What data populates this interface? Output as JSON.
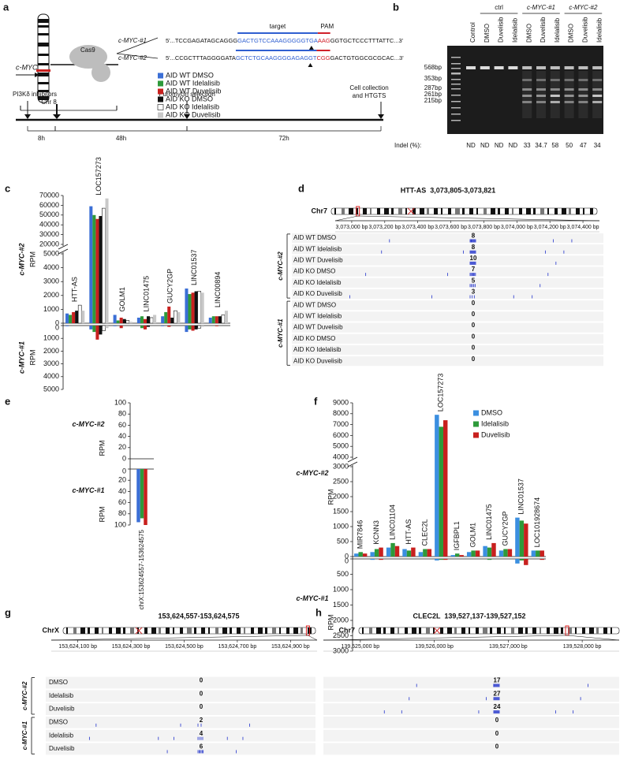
{
  "panel_a": {
    "letter": "a",
    "gene": "c-MYC",
    "chromosome": "Chr 8",
    "cas9": "Cas9",
    "guides": [
      {
        "name": "c-MYC-#1",
        "seq": [
          "5'...TCCGAGATAGCAGGG",
          "GACTGTCCAAAGGGGGTGA",
          "AAG",
          "GGTGCTCCCTTTATTC...3'"
        ]
      },
      {
        "name": "c-MYC-#2",
        "seq": [
          "5'...CCGCTTTAGGGGATA",
          "GCTCTGCAAGGGGAGAGGT",
          "CGG",
          "GACTGTGGCGCGCAC...3'"
        ]
      }
    ],
    "target": "target",
    "pam": "PAM",
    "timeline": {
      "events": [
        "PI3Kδ inhibitors",
        "Puromycin selection"
      ],
      "final_event": [
        "Cell collection",
        "and HTGTS"
      ],
      "durations": [
        "8h",
        "48h",
        "72h"
      ]
    }
  },
  "panel_b": {
    "letter": "b",
    "groups": [
      "ctrl",
      "c-MYC-#1",
      "c-MYC-#2"
    ],
    "lanes": [
      "Control",
      "DMSO",
      "Duvelisib",
      "Idelalisib",
      "DMSO",
      "Duvelisib",
      "Idelalisib",
      "DMSO",
      "Duvelisib",
      "Idelalisib"
    ],
    "sizes": [
      "568bp",
      "353bp",
      "287bp",
      "261bp",
      "215bp"
    ],
    "indel_label": "Indel (%):",
    "indel": [
      "ND",
      "ND",
      "ND",
      "ND",
      33,
      34.7,
      58,
      50,
      47,
      34
    ]
  },
  "panel_d": {
    "letter": "d",
    "title": "HTT-AS  3,073,805-3,073,821",
    "chromosome": "Chr7",
    "ruler": [
      "3,073,000 bp",
      "3,073,200 bp",
      "3,073,400 bp",
      "3,073,600 bp",
      "3,073,800 bp",
      "3,074,000 bp",
      "3,074,200 bp",
      "3,074,400 bp"
    ],
    "groups": [
      {
        "label": "c-MYC-#2",
        "rows": [
          {
            "label": "AID WT DMSO",
            "count": 8
          },
          {
            "label": "AID WT Idelalisib",
            "count": 8
          },
          {
            "label": "AID WT Duvelisib",
            "count": 10
          },
          {
            "label": "AID KO DMSO",
            "count": 7
          },
          {
            "label": "AID KO Idelalisib",
            "count": 5
          },
          {
            "label": "AID KO Duvelisib",
            "count": 3
          }
        ]
      },
      {
        "label": "c-MYC-#1",
        "rows": [
          {
            "label": "AID WT DMSO",
            "count": 0
          },
          {
            "label": "AID WT Idelalisib",
            "count": 0
          },
          {
            "label": "AID WT Duvelisib",
            "count": 0
          },
          {
            "label": "AID KO DMSO",
            "count": 0
          },
          {
            "label": "AID KO Idelalisib",
            "count": 0
          },
          {
            "label": "AID KO Duvelisib",
            "count": 0
          }
        ]
      }
    ]
  },
  "panel_g": {
    "letter": "g",
    "title": "153,624,557-153,624,575",
    "chromosome": "ChrX",
    "ruler": [
      "153,624,100 bp",
      "153,624,300 bp",
      "153,624,500 bp",
      "153,624,700 bp",
      "153,624,900 bp"
    ],
    "groups": [
      {
        "label": "c-MYC-#2",
        "rows": [
          {
            "label": "DMSO",
            "count": 0
          },
          {
            "label": "Idelalisib",
            "count": 0
          },
          {
            "label": "Duvelisib",
            "count": 0
          }
        ]
      },
      {
        "label": "c-MYC-#1",
        "rows": [
          {
            "label": "DMSO",
            "count": 2
          },
          {
            "label": "Idelalisib",
            "count": 4
          },
          {
            "label": "Duvelisib",
            "count": 6
          }
        ]
      }
    ]
  },
  "panel_h": {
    "letter": "h",
    "title": "CLEC2L  139,527,137-139,527,152",
    "chromosome": "Chr7",
    "ruler": [
      "139,525,000 bp",
      "139,526,000 bp",
      "139,527,000 bp",
      "139,528,000 bp"
    ],
    "groups": [
      {
        "rows": [
          {
            "count": 17
          },
          {
            "count": 27
          },
          {
            "count": 24
          }
        ]
      },
      {
        "rows": [
          {
            "count": 0
          },
          {
            "count": 0
          },
          {
            "count": 0
          }
        ]
      }
    ]
  },
  "chart_data": [
    {
      "type": "bar",
      "panel": "c",
      "categories": [
        "HTT-AS",
        "LOC157273",
        "GOLM1",
        "LINC01475",
        "GUCY2GP",
        "LINC01537",
        "LINC00894"
      ],
      "series": [
        {
          "name": "AID WT DMSO",
          "color": "#3b6fd6",
          "values": [
            700,
            59000,
            600,
            400,
            500,
            2500,
            400
          ],
          "values_lower": [
            50,
            300,
            50,
            0,
            50,
            500,
            0
          ]
        },
        {
          "name": "AID WT Idelalisib",
          "color": "#2e9a3a",
          "values": [
            600,
            50000,
            200,
            500,
            800,
            2100,
            500
          ],
          "values_lower": [
            0,
            500,
            0,
            200,
            0,
            300,
            0
          ]
        },
        {
          "name": "AID WT Duvelisib",
          "color": "#c8201e",
          "values": [
            800,
            46000,
            400,
            300,
            1200,
            2200,
            500
          ],
          "values_lower": [
            0,
            1100,
            200,
            300,
            100,
            400,
            50
          ]
        },
        {
          "name": "AID KO DMSO",
          "color": "#111111",
          "values": [
            900,
            49000,
            300,
            500,
            400,
            2300,
            500
          ],
          "values_lower": [
            0,
            700,
            0,
            100,
            0,
            300,
            0
          ]
        },
        {
          "name": "AID KO Idelalisib",
          "color": "#ffffff",
          "values": [
            1300,
            57000,
            200,
            400,
            900,
            2300,
            600
          ],
          "values_lower": [
            0,
            400,
            0,
            0,
            0,
            200,
            0
          ]
        },
        {
          "name": "AID KO Duvelisib",
          "color": "#c8c8c8",
          "values": [
            900,
            67000,
            100,
            600,
            800,
            2200,
            900
          ],
          "values_lower": [
            0,
            200,
            0,
            0,
            0,
            100,
            0
          ]
        }
      ],
      "upper": {
        "label": "c-MYC-#2",
        "ylabel": "RPM",
        "ylim": [
          0,
          70000
        ],
        "break": [
          5000,
          20000
        ],
        "yticks": [
          0,
          1000,
          2000,
          3000,
          4000,
          5000,
          20000,
          30000,
          40000,
          50000,
          60000,
          70000
        ]
      },
      "lower": {
        "label": "c-MYC-#1",
        "ylabel": "RPM",
        "ylim": [
          0,
          5000
        ],
        "yticks": [
          0,
          1000,
          2000,
          3000,
          4000,
          5000
        ]
      }
    },
    {
      "type": "bar",
      "panel": "e",
      "categories": [
        "chrX:153624557-153624575"
      ],
      "series": [
        {
          "color": "#3b6fd6",
          "values": [
            0
          ],
          "values_lower": [
            95
          ]
        },
        {
          "color": "#2e9a3a",
          "values": [
            0
          ],
          "values_lower": [
            88
          ]
        },
        {
          "color": "#c8201e",
          "values": [
            0
          ],
          "values_lower": [
            100
          ]
        }
      ],
      "upper": {
        "label": "c-MYC-#2",
        "ylabel": "RPM",
        "ylim": [
          0,
          100
        ],
        "yticks": [
          0,
          20,
          40,
          60,
          80,
          100
        ]
      },
      "lower": {
        "label": "c-MYC-#1",
        "ylabel": "RPM",
        "ylim": [
          0,
          100
        ],
        "yticks": [
          0,
          20,
          40,
          60,
          80,
          100
        ]
      }
    },
    {
      "type": "bar",
      "panel": "f",
      "categories": [
        "MIR7846",
        "KCNN3",
        "LINC01104",
        "HTT-AS",
        "CLEC2L",
        "LOC157273",
        "IGFBPL1",
        "GOLM1",
        "LINC01475",
        "GUCY2GP",
        "LINC01537",
        "LOC101928674"
      ],
      "series": [
        {
          "name": "DMSO",
          "color": "#3b8fe0",
          "values": [
            100,
            150,
            300,
            250,
            150,
            7900,
            50,
            150,
            350,
            200,
            1300,
            200
          ],
          "values_lower": [
            0,
            30,
            0,
            0,
            0,
            50,
            0,
            0,
            0,
            0,
            150,
            0
          ]
        },
        {
          "name": "Idelalisib",
          "color": "#2e9a3a",
          "values": [
            150,
            250,
            450,
            200,
            250,
            6800,
            100,
            200,
            300,
            250,
            1200,
            200
          ],
          "values_lower": [
            0,
            0,
            0,
            0,
            0,
            30,
            0,
            0,
            30,
            0,
            50,
            0
          ]
        },
        {
          "name": "Duvelisib",
          "color": "#c8201e",
          "values": [
            100,
            300,
            350,
            300,
            250,
            7400,
            50,
            200,
            450,
            250,
            1100,
            200
          ],
          "values_lower": [
            0,
            30,
            0,
            0,
            0,
            30,
            0,
            0,
            0,
            0,
            200,
            30
          ]
        }
      ],
      "upper": {
        "label": "c-MYC-#2",
        "ylabel": "RPM",
        "ylim": [
          0,
          9000
        ],
        "break": [
          3000,
          4000
        ],
        "yticks": [
          0,
          500,
          1000,
          1500,
          2000,
          2500,
          3000,
          4000,
          5000,
          6000,
          7000,
          8000,
          9000
        ]
      },
      "lower": {
        "label": "c-MYC-#1",
        "ylabel": "RPM",
        "ylim": [
          0,
          3000
        ],
        "yticks": [
          0,
          500,
          1000,
          1500,
          2000,
          2500,
          3000
        ]
      }
    }
  ]
}
